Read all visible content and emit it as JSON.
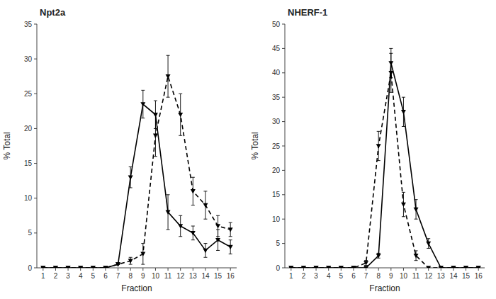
{
  "chart_data": [
    {
      "type": "line",
      "title": "Npt2a",
      "xlabel": "Fraction",
      "ylabel": "% Total",
      "x": [
        1,
        2,
        3,
        4,
        5,
        6,
        7,
        8,
        9,
        10,
        11,
        12,
        13,
        14,
        15,
        16
      ],
      "series": [
        {
          "color": "black",
          "line_style": "solid",
          "marker": "triangle-down",
          "values": [
            0,
            0,
            0,
            0,
            0,
            0,
            0.5,
            13,
            23.5,
            22,
            8,
            6,
            5,
            2.5,
            4,
            3
          ],
          "errors": [
            0,
            0,
            0,
            0,
            0,
            0,
            0,
            1.5,
            2,
            2,
            2.5,
            1.5,
            1,
            1,
            1.5,
            1
          ]
        },
        {
          "color": "black",
          "line_style": "dashed",
          "marker": "triangle-down",
          "values": [
            0,
            0,
            0,
            0,
            0,
            0,
            0.5,
            1,
            2,
            19,
            27.5,
            22,
            11,
            9,
            6,
            5.5
          ],
          "errors": [
            0,
            0,
            0,
            0,
            0,
            0,
            0,
            0.5,
            1.5,
            3,
            3,
            3,
            2,
            2,
            1.5,
            1
          ]
        }
      ],
      "xlim": [
        0.5,
        16.5
      ],
      "xticks": [
        1,
        2,
        3,
        4,
        5,
        6,
        7,
        8,
        9,
        10,
        11,
        12,
        13,
        14,
        15,
        16
      ],
      "ylim": [
        0,
        35
      ],
      "yticks": [
        0,
        5,
        10,
        15,
        20,
        25,
        30,
        35
      ],
      "grid": false
    },
    {
      "type": "line",
      "title": "NHERF-1",
      "xlabel": "Fraction",
      "ylabel": "% Total",
      "x": [
        1,
        2,
        3,
        4,
        5,
        6,
        7,
        8,
        9,
        10,
        11,
        12,
        13,
        14,
        15,
        16
      ],
      "series": [
        {
          "color": "black",
          "line_style": "solid",
          "marker": "triangle-down",
          "values": [
            0,
            0,
            0,
            0,
            0,
            0,
            0,
            2.5,
            42,
            32,
            12,
            5,
            0,
            0,
            0,
            0
          ],
          "errors": [
            0,
            0,
            0,
            0,
            0,
            0,
            0,
            0.5,
            3,
            3,
            2,
            1,
            0,
            0,
            0,
            0
          ]
        },
        {
          "color": "black",
          "line_style": "dashed",
          "marker": "triangle-down",
          "values": [
            0,
            0,
            0,
            0,
            0,
            0,
            1,
            25,
            40,
            13,
            2.5,
            0,
            0,
            0,
            0,
            0
          ],
          "errors": [
            0,
            0,
            0,
            0,
            0,
            0,
            0.5,
            3,
            4,
            2.5,
            1,
            0,
            0,
            0,
            0,
            0
          ]
        }
      ],
      "xlim": [
        0.5,
        16.5
      ],
      "xticks": [
        1,
        2,
        3,
        4,
        5,
        6,
        7,
        8,
        9,
        10,
        11,
        12,
        13,
        14,
        15,
        16
      ],
      "ylim": [
        0,
        50
      ],
      "yticks": [
        0,
        5,
        10,
        15,
        20,
        25,
        30,
        35,
        40,
        45,
        50
      ],
      "grid": false
    }
  ]
}
